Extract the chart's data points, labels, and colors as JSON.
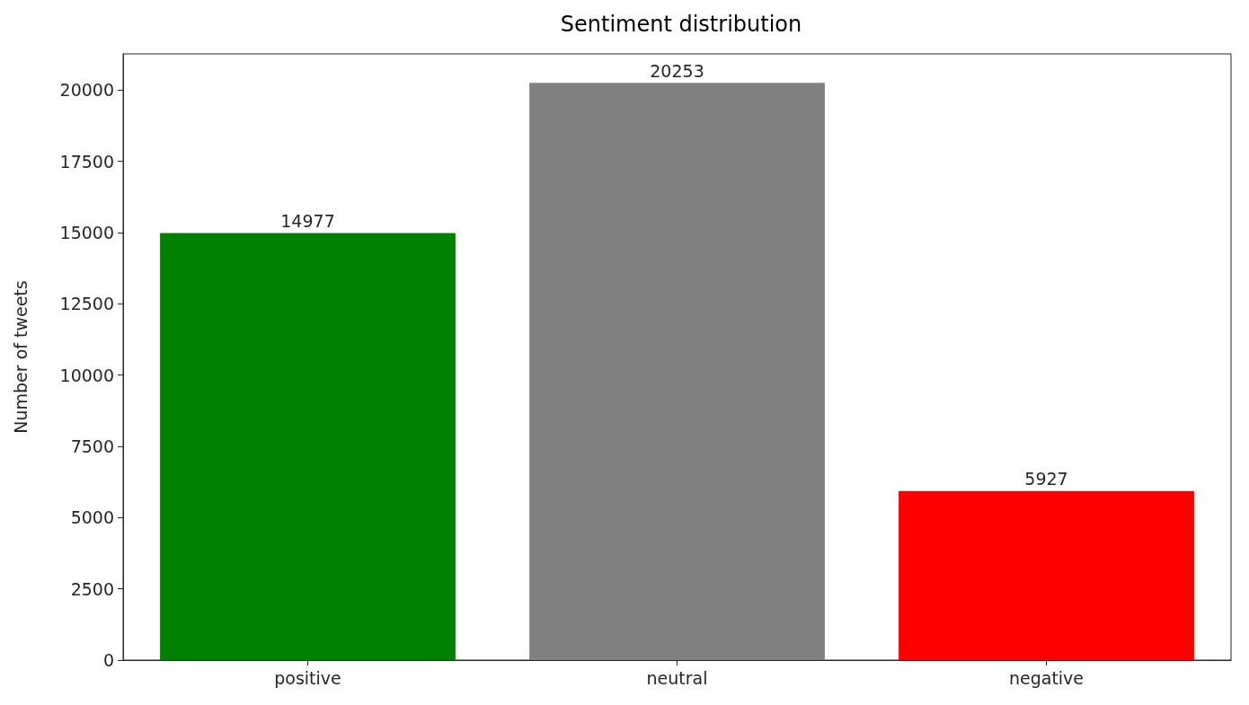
{
  "chart_data": {
    "type": "bar",
    "title": "Sentiment distribution",
    "ylabel": "Number of tweets",
    "categories": [
      "positive",
      "neutral",
      "negative"
    ],
    "values": [
      14977,
      20253,
      5927
    ],
    "colors": [
      "#008000",
      "#808080",
      "#ff0000"
    ],
    "ylim": [
      0,
      21266
    ],
    "yticks": [
      0,
      2500,
      5000,
      7500,
      10000,
      12500,
      15000,
      17500,
      20000
    ],
    "data_labels": true,
    "grid": false
  }
}
